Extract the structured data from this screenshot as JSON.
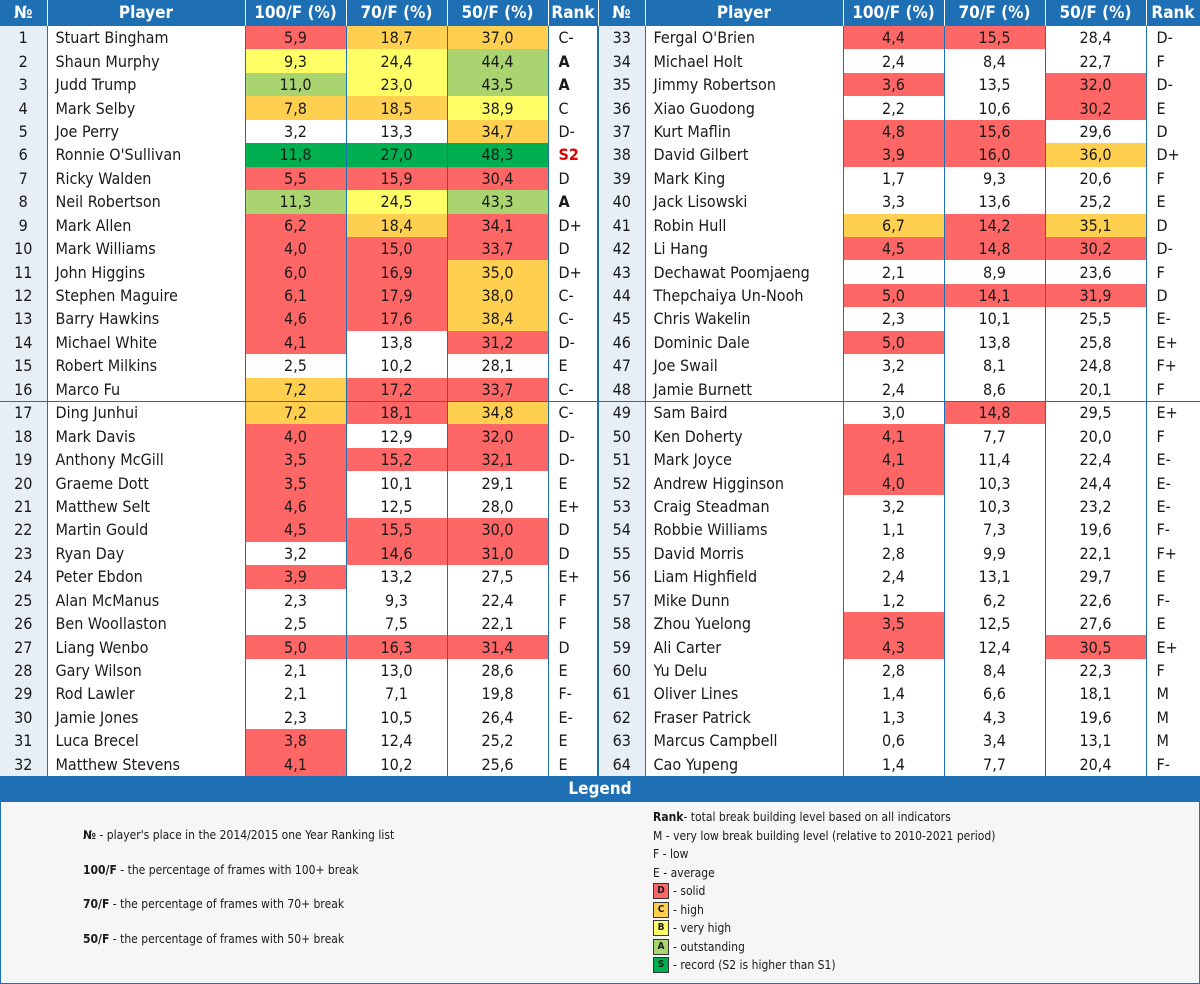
{
  "headers": [
    "№",
    "Player",
    "100/F (%)",
    "70/F (%)",
    "50/F (%)",
    "Rank"
  ],
  "rows": [
    {
      "no": "1",
      "name": "Stuart Bingham",
      "p100": "5,9",
      "p70": "18,7",
      "p50": "37,0",
      "rank": "C-",
      "c100": "D",
      "c70": "C",
      "c50": "C"
    },
    {
      "no": "2",
      "name": "Shaun Murphy",
      "p100": "9,3",
      "p70": "24,4",
      "p50": "44,4",
      "rank": "A",
      "c100": "B",
      "c70": "B",
      "c50": "A"
    },
    {
      "no": "3",
      "name": "Judd Trump",
      "p100": "11,0",
      "p70": "23,0",
      "p50": "43,5",
      "rank": "A",
      "c100": "A",
      "c70": "B",
      "c50": "A"
    },
    {
      "no": "4",
      "name": "Mark Selby",
      "p100": "7,8",
      "p70": "18,5",
      "p50": "38,9",
      "rank": "C",
      "c100": "C",
      "c70": "C",
      "c50": "B"
    },
    {
      "no": "5",
      "name": "Joe Perry",
      "p100": "3,2",
      "p70": "13,3",
      "p50": "34,7",
      "rank": "D-",
      "c100": "",
      "c70": "",
      "c50": "C"
    },
    {
      "no": "6",
      "name": "Ronnie O'Sullivan",
      "p100": "11,8",
      "p70": "27,0",
      "p50": "48,3",
      "rank": "S2",
      "c100": "S",
      "c70": "S",
      "c50": "S"
    },
    {
      "no": "7",
      "name": "Ricky Walden",
      "p100": "5,5",
      "p70": "15,9",
      "p50": "30,4",
      "rank": "D",
      "c100": "D",
      "c70": "D",
      "c50": "D"
    },
    {
      "no": "8",
      "name": "Neil Robertson",
      "p100": "11,3",
      "p70": "24,5",
      "p50": "43,3",
      "rank": "A",
      "c100": "A",
      "c70": "B",
      "c50": "A"
    },
    {
      "no": "9",
      "name": "Mark Allen",
      "p100": "6,2",
      "p70": "18,4",
      "p50": "34,1",
      "rank": "D+",
      "c100": "D",
      "c70": "C",
      "c50": "D"
    },
    {
      "no": "10",
      "name": "Mark Williams",
      "p100": "4,0",
      "p70": "15,0",
      "p50": "33,7",
      "rank": "D",
      "c100": "D",
      "c70": "D",
      "c50": "D"
    },
    {
      "no": "11",
      "name": "John Higgins",
      "p100": "6,0",
      "p70": "16,9",
      "p50": "35,0",
      "rank": "D+",
      "c100": "D",
      "c70": "D",
      "c50": "C"
    },
    {
      "no": "12",
      "name": "Stephen Maguire",
      "p100": "6,1",
      "p70": "17,9",
      "p50": "38,0",
      "rank": "C-",
      "c100": "D",
      "c70": "D",
      "c50": "C"
    },
    {
      "no": "13",
      "name": "Barry Hawkins",
      "p100": "4,6",
      "p70": "17,6",
      "p50": "38,4",
      "rank": "C-",
      "c100": "D",
      "c70": "D",
      "c50": "C"
    },
    {
      "no": "14",
      "name": "Michael White",
      "p100": "4,1",
      "p70": "13,8",
      "p50": "31,2",
      "rank": "D-",
      "c100": "D",
      "c70": "",
      "c50": "D"
    },
    {
      "no": "15",
      "name": "Robert Milkins",
      "p100": "2,5",
      "p70": "10,2",
      "p50": "28,1",
      "rank": "E",
      "c100": "",
      "c70": "",
      "c50": ""
    },
    {
      "no": "16",
      "name": "Marco Fu",
      "p100": "7,2",
      "p70": "17,2",
      "p50": "33,7",
      "rank": "C-",
      "c100": "C",
      "c70": "D",
      "c50": "D"
    },
    {
      "no": "17",
      "name": "Ding Junhui",
      "p100": "7,2",
      "p70": "18,1",
      "p50": "34,8",
      "rank": "C-",
      "c100": "C",
      "c70": "D",
      "c50": "C"
    },
    {
      "no": "18",
      "name": "Mark Davis",
      "p100": "4,0",
      "p70": "12,9",
      "p50": "32,0",
      "rank": "D-",
      "c100": "D",
      "c70": "",
      "c50": "D"
    },
    {
      "no": "19",
      "name": "Anthony McGill",
      "p100": "3,5",
      "p70": "15,2",
      "p50": "32,1",
      "rank": "D-",
      "c100": "D",
      "c70": "D",
      "c50": "D"
    },
    {
      "no": "20",
      "name": "Graeme Dott",
      "p100": "3,5",
      "p70": "10,1",
      "p50": "29,1",
      "rank": "E",
      "c100": "D",
      "c70": "",
      "c50": ""
    },
    {
      "no": "21",
      "name": "Matthew Selt",
      "p100": "4,6",
      "p70": "12,5",
      "p50": "28,0",
      "rank": "E+",
      "c100": "D",
      "c70": "",
      "c50": ""
    },
    {
      "no": "22",
      "name": "Martin Gould",
      "p100": "4,5",
      "p70": "15,5",
      "p50": "30,0",
      "rank": "D",
      "c100": "D",
      "c70": "D",
      "c50": "D"
    },
    {
      "no": "23",
      "name": "Ryan Day",
      "p100": "3,2",
      "p70": "14,6",
      "p50": "31,0",
      "rank": "D",
      "c100": "",
      "c70": "D",
      "c50": "D"
    },
    {
      "no": "24",
      "name": "Peter Ebdon",
      "p100": "3,9",
      "p70": "13,2",
      "p50": "27,5",
      "rank": "E+",
      "c100": "D",
      "c70": "",
      "c50": ""
    },
    {
      "no": "25",
      "name": "Alan McManus",
      "p100": "2,3",
      "p70": "9,3",
      "p50": "22,4",
      "rank": "F",
      "c100": "",
      "c70": "",
      "c50": ""
    },
    {
      "no": "26",
      "name": "Ben Woollaston",
      "p100": "2,5",
      "p70": "7,5",
      "p50": "22,1",
      "rank": "F",
      "c100": "",
      "c70": "",
      "c50": ""
    },
    {
      "no": "27",
      "name": "Liang Wenbo",
      "p100": "5,0",
      "p70": "16,3",
      "p50": "31,4",
      "rank": "D",
      "c100": "D",
      "c70": "D",
      "c50": "D"
    },
    {
      "no": "28",
      "name": "Gary Wilson",
      "p100": "2,1",
      "p70": "13,0",
      "p50": "28,6",
      "rank": "E",
      "c100": "",
      "c70": "",
      "c50": ""
    },
    {
      "no": "29",
      "name": "Rod Lawler",
      "p100": "2,1",
      "p70": "7,1",
      "p50": "19,8",
      "rank": "F-",
      "c100": "",
      "c70": "",
      "c50": ""
    },
    {
      "no": "30",
      "name": "Jamie Jones",
      "p100": "2,3",
      "p70": "10,5",
      "p50": "26,4",
      "rank": "E-",
      "c100": "",
      "c70": "",
      "c50": ""
    },
    {
      "no": "31",
      "name": "Luca Brecel",
      "p100": "3,8",
      "p70": "12,4",
      "p50": "25,2",
      "rank": "E",
      "c100": "D",
      "c70": "",
      "c50": ""
    },
    {
      "no": "32",
      "name": "Matthew Stevens",
      "p100": "4,1",
      "p70": "10,2",
      "p50": "25,6",
      "rank": "E",
      "c100": "D",
      "c70": "",
      "c50": ""
    },
    {
      "no": "33",
      "name": "Fergal O'Brien",
      "p100": "4,4",
      "p70": "15,5",
      "p50": "28,4",
      "rank": "D-",
      "c100": "D",
      "c70": "D",
      "c50": ""
    },
    {
      "no": "34",
      "name": "Michael Holt",
      "p100": "2,4",
      "p70": "8,4",
      "p50": "22,7",
      "rank": "F",
      "c100": "",
      "c70": "",
      "c50": ""
    },
    {
      "no": "35",
      "name": "Jimmy Robertson",
      "p100": "3,6",
      "p70": "13,5",
      "p50": "32,0",
      "rank": "D-",
      "c100": "D",
      "c70": "",
      "c50": "D"
    },
    {
      "no": "36",
      "name": "Xiao Guodong",
      "p100": "2,2",
      "p70": "10,6",
      "p50": "30,2",
      "rank": "E",
      "c100": "",
      "c70": "",
      "c50": "D"
    },
    {
      "no": "37",
      "name": "Kurt Maflin",
      "p100": "4,8",
      "p70": "15,6",
      "p50": "29,6",
      "rank": "D",
      "c100": "D",
      "c70": "D",
      "c50": ""
    },
    {
      "no": "38",
      "name": "David Gilbert",
      "p100": "3,9",
      "p70": "16,0",
      "p50": "36,0",
      "rank": "D+",
      "c100": "D",
      "c70": "D",
      "c50": "C"
    },
    {
      "no": "39",
      "name": "Mark King",
      "p100": "1,7",
      "p70": "9,3",
      "p50": "20,6",
      "rank": "F",
      "c100": "",
      "c70": "",
      "c50": ""
    },
    {
      "no": "40",
      "name": "Jack Lisowski",
      "p100": "3,3",
      "p70": "13,6",
      "p50": "25,2",
      "rank": "E",
      "c100": "",
      "c70": "",
      "c50": ""
    },
    {
      "no": "41",
      "name": "Robin Hull",
      "p100": "6,7",
      "p70": "14,2",
      "p50": "35,1",
      "rank": "D",
      "c100": "C",
      "c70": "D",
      "c50": "C"
    },
    {
      "no": "42",
      "name": "Li Hang",
      "p100": "4,5",
      "p70": "14,8",
      "p50": "30,2",
      "rank": "D-",
      "c100": "D",
      "c70": "D",
      "c50": "D"
    },
    {
      "no": "43",
      "name": "Dechawat Poomjaeng",
      "p100": "2,1",
      "p70": "8,9",
      "p50": "23,6",
      "rank": "F",
      "c100": "",
      "c70": "",
      "c50": ""
    },
    {
      "no": "44",
      "name": "Thepchaiya Un-Nooh",
      "p100": "5,0",
      "p70": "14,1",
      "p50": "31,9",
      "rank": "D",
      "c100": "D",
      "c70": "D",
      "c50": "D"
    },
    {
      "no": "45",
      "name": "Chris Wakelin",
      "p100": "2,3",
      "p70": "10,1",
      "p50": "25,5",
      "rank": "E-",
      "c100": "",
      "c70": "",
      "c50": ""
    },
    {
      "no": "46",
      "name": "Dominic Dale",
      "p100": "5,0",
      "p70": "13,8",
      "p50": "25,8",
      "rank": "E+",
      "c100": "D",
      "c70": "",
      "c50": ""
    },
    {
      "no": "47",
      "name": "Joe Swail",
      "p100": "3,2",
      "p70": "8,1",
      "p50": "24,8",
      "rank": "F+",
      "c100": "",
      "c70": "",
      "c50": ""
    },
    {
      "no": "48",
      "name": "Jamie Burnett",
      "p100": "2,4",
      "p70": "8,6",
      "p50": "20,1",
      "rank": "F",
      "c100": "",
      "c70": "",
      "c50": ""
    },
    {
      "no": "49",
      "name": "Sam Baird",
      "p100": "3,0",
      "p70": "14,8",
      "p50": "29,5",
      "rank": "E+",
      "c100": "",
      "c70": "D",
      "c50": ""
    },
    {
      "no": "50",
      "name": "Ken Doherty",
      "p100": "4,1",
      "p70": "7,7",
      "p50": "20,0",
      "rank": "F",
      "c100": "D",
      "c70": "",
      "c50": ""
    },
    {
      "no": "51",
      "name": "Mark Joyce",
      "p100": "4,1",
      "p70": "11,4",
      "p50": "22,4",
      "rank": "E-",
      "c100": "D",
      "c70": "",
      "c50": ""
    },
    {
      "no": "52",
      "name": "Andrew Higginson",
      "p100": "4,0",
      "p70": "10,3",
      "p50": "24,4",
      "rank": "E-",
      "c100": "D",
      "c70": "",
      "c50": ""
    },
    {
      "no": "53",
      "name": "Craig Steadman",
      "p100": "3,2",
      "p70": "10,3",
      "p50": "23,2",
      "rank": "E-",
      "c100": "",
      "c70": "",
      "c50": ""
    },
    {
      "no": "54",
      "name": "Robbie Williams",
      "p100": "1,1",
      "p70": "7,3",
      "p50": "19,6",
      "rank": "F-",
      "c100": "",
      "c70": "",
      "c50": ""
    },
    {
      "no": "55",
      "name": "David Morris",
      "p100": "2,8",
      "p70": "9,9",
      "p50": "22,1",
      "rank": "F+",
      "c100": "",
      "c70": "",
      "c50": ""
    },
    {
      "no": "56",
      "name": "Liam Highfield",
      "p100": "2,4",
      "p70": "13,1",
      "p50": "29,7",
      "rank": "E",
      "c100": "",
      "c70": "",
      "c50": ""
    },
    {
      "no": "57",
      "name": "Mike Dunn",
      "p100": "1,2",
      "p70": "6,2",
      "p50": "22,6",
      "rank": "F-",
      "c100": "",
      "c70": "",
      "c50": ""
    },
    {
      "no": "58",
      "name": "Zhou Yuelong",
      "p100": "3,5",
      "p70": "12,5",
      "p50": "27,6",
      "rank": "E",
      "c100": "D",
      "c70": "",
      "c50": ""
    },
    {
      "no": "59",
      "name": "Ali Carter",
      "p100": "4,3",
      "p70": "12,4",
      "p50": "30,5",
      "rank": "E+",
      "c100": "D",
      "c70": "",
      "c50": "D"
    },
    {
      "no": "60",
      "name": "Yu Delu",
      "p100": "2,8",
      "p70": "8,4",
      "p50": "22,3",
      "rank": "F",
      "c100": "",
      "c70": "",
      "c50": ""
    },
    {
      "no": "61",
      "name": "Oliver Lines",
      "p100": "1,4",
      "p70": "6,6",
      "p50": "18,1",
      "rank": "M",
      "c100": "",
      "c70": "",
      "c50": ""
    },
    {
      "no": "62",
      "name": "Fraser Patrick",
      "p100": "1,3",
      "p70": "4,3",
      "p50": "19,6",
      "rank": "M",
      "c100": "",
      "c70": "",
      "c50": ""
    },
    {
      "no": "63",
      "name": "Marcus Campbell",
      "p100": "0,6",
      "p70": "3,4",
      "p50": "13,1",
      "rank": "M",
      "c100": "",
      "c70": "",
      "c50": ""
    },
    {
      "no": "64",
      "name": "Cao Yupeng",
      "p100": "1,4",
      "p70": "7,7",
      "p50": "20,4",
      "rank": "F-",
      "c100": "",
      "c70": "",
      "c50": ""
    }
  ],
  "legend": {
    "title": "Legend",
    "left": [
      {
        "key": "№",
        "text": " - player's place in the 2014/2015 one Year Ranking list"
      },
      {
        "key": "100/F",
        "text": " - the percentage of frames with 100+ break"
      },
      {
        "key": "70/F",
        "text": " - the percentage of frames with 70+ break"
      },
      {
        "key": "50/F",
        "text": " - the percentage of frames with 50+ break"
      }
    ],
    "rank_key": "Rank",
    "rank_text": " - total break building level based on all indicators",
    "levels": [
      {
        "text": "M - very low break building level (relative to 2010-2021 period)"
      },
      {
        "text": "F - low"
      },
      {
        "text": "E - average"
      }
    ],
    "swatches": [
      {
        "letter": "D",
        "text": " - solid",
        "color": "#ff6666"
      },
      {
        "letter": "C",
        "text": " - high",
        "color": "#ffd04f"
      },
      {
        "letter": "B",
        "text": " - very high",
        "color": "#ffff66"
      },
      {
        "letter": "A",
        "text": " - outstanding",
        "color": "#a9d46f"
      },
      {
        "letter": "S",
        "text": " - record (S2 is higher than S1)",
        "color": "#00b050"
      }
    ]
  },
  "colors": {
    "header": "#1f6fb4",
    "S": "#00b050",
    "A": "#a9d46f",
    "B": "#ffff66",
    "C": "#ffd04f",
    "D": "#ff6666"
  }
}
